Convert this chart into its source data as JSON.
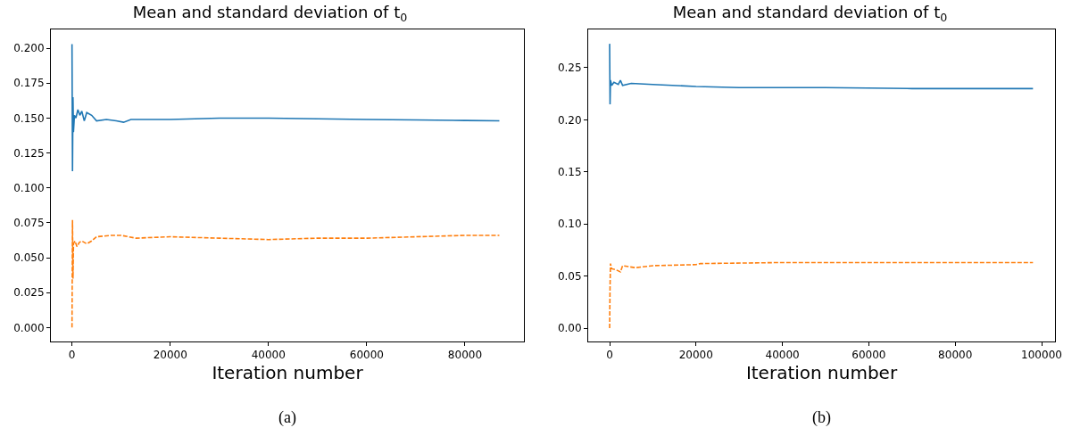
{
  "chart_data": [
    {
      "type": "line",
      "title": "Mean and standard deviation of t$_{0}$",
      "xlabel": "Iteration number",
      "grid": false,
      "xlim": [
        -4300,
        92000
      ],
      "xticks": [
        0,
        20000,
        40000,
        60000,
        80000
      ],
      "ylim": [
        -0.01,
        0.2135
      ],
      "yticks": [
        {
          "value": 0,
          "label": "0.000"
        },
        {
          "value": 0.025,
          "label": "0.025"
        },
        {
          "value": 0.05,
          "label": "0.050"
        },
        {
          "value": 0.075,
          "label": "0.075"
        },
        {
          "value": 0.1,
          "label": "0.100"
        },
        {
          "value": 0.125,
          "label": "0.125"
        },
        {
          "value": 0.15,
          "label": "0.150"
        },
        {
          "value": 0.175,
          "label": "0.175"
        },
        {
          "value": 0.2,
          "label": "0.200"
        }
      ],
      "annotations": [
        "(a)"
      ],
      "series": [
        {
          "color": "#1f77b4",
          "line_style": "solid",
          "x": [
            0,
            100,
            200,
            300,
            500,
            800,
            1200,
            1600,
            2000,
            2500,
            3000,
            4000,
            5000,
            7000,
            9000,
            10500,
            12000,
            20000,
            30000,
            40000,
            50000,
            60000,
            70000,
            80000,
            87000
          ],
          "values": [
            0.203,
            0.112,
            0.165,
            0.14,
            0.152,
            0.15,
            0.156,
            0.152,
            0.155,
            0.148,
            0.154,
            0.152,
            0.148,
            0.149,
            0.148,
            0.147,
            0.149,
            0.149,
            0.15,
            0.15,
            0.1495,
            0.149,
            0.1487,
            0.1483,
            0.148
          ]
        },
        {
          "color": "#ff7f0e",
          "line_style": "dashed",
          "x": [
            0,
            100,
            200,
            300,
            600,
            1000,
            1500,
            2000,
            3000,
            4000,
            5000,
            8000,
            10000,
            13000,
            20000,
            30000,
            40000,
            50000,
            60000,
            70000,
            80000,
            87000
          ],
          "values": [
            0.0,
            0.077,
            0.035,
            0.06,
            0.062,
            0.058,
            0.061,
            0.062,
            0.06,
            0.062,
            0.065,
            0.066,
            0.066,
            0.064,
            0.065,
            0.064,
            0.063,
            0.064,
            0.064,
            0.065,
            0.066,
            0.066
          ]
        }
      ]
    },
    {
      "type": "line",
      "title": "Mean and standard deviation of t$_{0}$",
      "xlabel": "Iteration number",
      "grid": false,
      "xlim": [
        -4960,
        103100
      ],
      "xticks": [
        0,
        20000,
        40000,
        60000,
        80000,
        100000
      ],
      "ylim": [
        -0.0128,
        0.2868
      ],
      "yticks": [
        {
          "value": 0,
          "label": "0.00"
        },
        {
          "value": 0.05,
          "label": "0.05"
        },
        {
          "value": 0.1,
          "label": "0.10"
        },
        {
          "value": 0.15,
          "label": "0.15"
        },
        {
          "value": 0.2,
          "label": "0.20"
        },
        {
          "value": 0.25,
          "label": "0.25"
        }
      ],
      "annotations": [
        "(b)"
      ],
      "series": [
        {
          "color": "#1f77b4",
          "line_style": "solid",
          "x": [
            0,
            100,
            200,
            500,
            1000,
            2000,
            2500,
            3000,
            5000,
            10000,
            20000,
            30000,
            50000,
            70000,
            90000,
            98000
          ],
          "values": [
            0.273,
            0.215,
            0.238,
            0.233,
            0.236,
            0.234,
            0.238,
            0.233,
            0.235,
            0.234,
            0.232,
            0.231,
            0.231,
            0.23,
            0.23,
            0.23
          ]
        },
        {
          "color": "#ff7f0e",
          "line_style": "dashed",
          "x": [
            0,
            100,
            200,
            500,
            1500,
            2500,
            3000,
            6000,
            10000,
            20000,
            21000,
            40000,
            60000,
            98000
          ],
          "values": [
            0.0,
            0.04,
            0.062,
            0.057,
            0.056,
            0.054,
            0.06,
            0.058,
            0.06,
            0.061,
            0.062,
            0.063,
            0.063,
            0.063
          ]
        }
      ]
    }
  ]
}
